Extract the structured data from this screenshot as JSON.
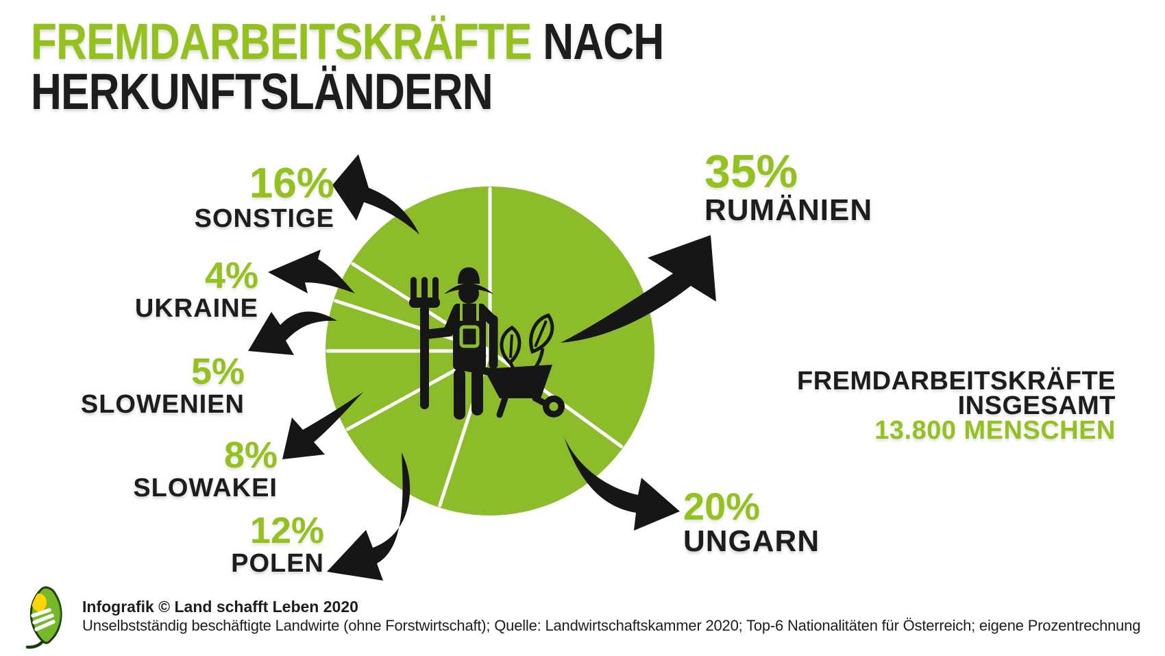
{
  "title": {
    "part1": "FREMDARBEITSKRÄFTE",
    "part2": "NACH",
    "line2": "HERKUNFTSLÄNDERN"
  },
  "colors": {
    "accent_green": "#95c11f",
    "pie_green": "#8dbc2b",
    "text_black": "#1d1d1b",
    "arrow_black": "#161616",
    "background": "#ffffff"
  },
  "chart_data": {
    "type": "pie",
    "title": "Fremdarbeitskräfte nach Herkunftsländern",
    "unit": "%",
    "direction": "clockwise",
    "start_angle_deg": 0,
    "legend_position": "radial-callouts",
    "center_icon": "farmer-with-pitchfork-wheelbarrow-and-leaves",
    "slices": [
      {
        "label": "RUMÄNIEN",
        "value": 35
      },
      {
        "label": "UNGARN",
        "value": 20
      },
      {
        "label": "POLEN",
        "value": 12
      },
      {
        "label": "SLOWAKEI",
        "value": 8
      },
      {
        "label": "SLOWENIEN",
        "value": 5
      },
      {
        "label": "UKRAINE",
        "value": 4
      },
      {
        "label": "SONSTIGE",
        "value": 16
      }
    ],
    "total": {
      "label": "FREMDARBEITSKRÄFTE INSGESAMT",
      "value": "13.800 MENSCHEN"
    }
  },
  "callouts": {
    "rumaenien": {
      "pct": "35%",
      "name": "RUMÄNIEN"
    },
    "ungarn": {
      "pct": "20%",
      "name": "UNGARN"
    },
    "polen": {
      "pct": "12%",
      "name": "POLEN"
    },
    "slowakei": {
      "pct": "8%",
      "name": "SLOWAKEI"
    },
    "slowenien": {
      "pct": "5%",
      "name": "SLOWENIEN"
    },
    "ukraine": {
      "pct": "4%",
      "name": "UKRAINE"
    },
    "sonstige": {
      "pct": "16%",
      "name": "SONSTIGE"
    }
  },
  "total_block": {
    "line1": "FREMDARBEITSKRÄFTE",
    "line2": "INSGESAMT",
    "line3": "13.800 MENSCHEN"
  },
  "footer": {
    "credit": "Infografik © Land schafft Leben 2020",
    "source": "Unselbstständig beschäftigte Landwirte (ohne Forstwirtschaft); Quelle: Landwirtschaftskammer 2020; Top-6 Nationalitäten für Österreich; eigene Prozentrechnung"
  }
}
